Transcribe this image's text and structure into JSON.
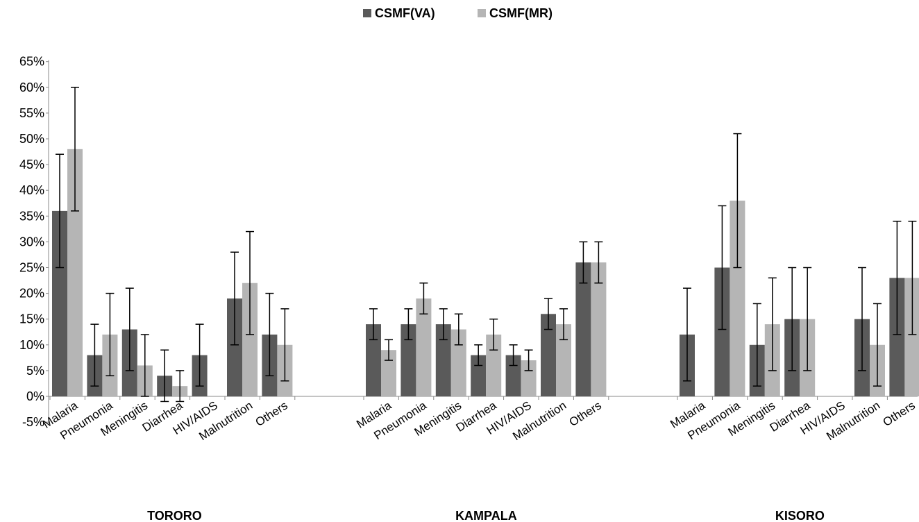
{
  "chart_data": {
    "type": "bar",
    "legend_position": "top-center",
    "grid": false,
    "ylim": [
      -5,
      65
    ],
    "y_tick_step": 5,
    "y_tick_suffix": "%",
    "categories": [
      "Malaria",
      "Pneumonia",
      "Meningitis",
      "Diarrhea",
      "HIV/AIDS",
      "Malnutrition",
      "Others"
    ],
    "series_names": [
      "CSMF(VA)",
      "CSMF(MR)"
    ],
    "colors": [
      "#5a5a5a",
      "#b5b5b5"
    ],
    "groups": [
      {
        "label": "TORORO",
        "series": [
          {
            "name": "CSMF(VA)",
            "values": [
              36,
              8,
              13,
              4,
              8,
              19,
              12
            ],
            "err_low": [
              25,
              2,
              5,
              -1,
              2,
              10,
              4
            ],
            "err_high": [
              47,
              14,
              21,
              9,
              14,
              28,
              20
            ]
          },
          {
            "name": "CSMF(MR)",
            "values": [
              48,
              12,
              6,
              2,
              null,
              22,
              10
            ],
            "err_low": [
              36,
              4,
              0,
              -1,
              null,
              12,
              3
            ],
            "err_high": [
              60,
              20,
              12,
              5,
              null,
              32,
              17
            ]
          }
        ]
      },
      {
        "label": "KAMPALA",
        "series": [
          {
            "name": "CSMF(VA)",
            "values": [
              14,
              14,
              14,
              8,
              8,
              16,
              26
            ],
            "err_low": [
              11,
              11,
              11,
              6,
              6,
              13,
              22
            ],
            "err_high": [
              17,
              17,
              17,
              10,
              10,
              19,
              30
            ]
          },
          {
            "name": "CSMF(MR)",
            "values": [
              9,
              19,
              13,
              12,
              7,
              14,
              26
            ],
            "err_low": [
              7,
              16,
              10,
              9,
              5,
              11,
              22
            ],
            "err_high": [
              11,
              22,
              16,
              15,
              9,
              17,
              30
            ]
          }
        ]
      },
      {
        "label": "KISORO",
        "series": [
          {
            "name": "CSMF(VA)",
            "values": [
              12,
              25,
              10,
              15,
              null,
              15,
              23
            ],
            "err_low": [
              3,
              13,
              2,
              5,
              null,
              5,
              12
            ],
            "err_high": [
              21,
              37,
              18,
              25,
              null,
              25,
              34
            ]
          },
          {
            "name": "CSMF(MR)",
            "values": [
              null,
              38,
              14,
              15,
              null,
              10,
              23
            ],
            "err_low": [
              null,
              25,
              5,
              5,
              null,
              2,
              12
            ],
            "err_high": [
              null,
              51,
              23,
              25,
              null,
              18,
              34
            ]
          }
        ]
      }
    ]
  }
}
